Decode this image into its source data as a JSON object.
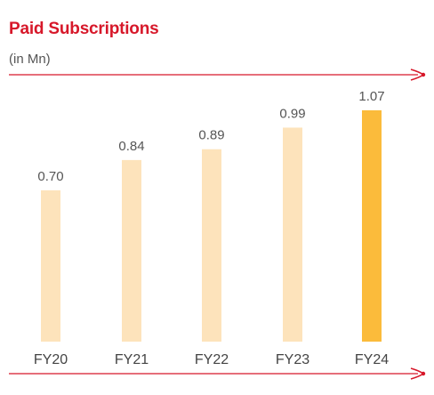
{
  "title": "Paid Subscriptions",
  "subtitle": "(in Mn)",
  "colors": {
    "accent": "#d7182a",
    "bar_default": "#fde3bb",
    "bar_highlight": "#fbbb3b",
    "text": "#555555"
  },
  "chart_data": {
    "type": "bar",
    "categories": [
      "FY20",
      "FY21",
      "FY22",
      "FY23",
      "FY24"
    ],
    "values": [
      0.7,
      0.84,
      0.89,
      0.99,
      1.07
    ],
    "value_labels": [
      "0.70",
      "0.84",
      "0.89",
      "0.99",
      "1.07"
    ],
    "highlight_index": 4,
    "ylim": [
      0,
      1.07
    ],
    "grid": false,
    "legend": "none"
  }
}
